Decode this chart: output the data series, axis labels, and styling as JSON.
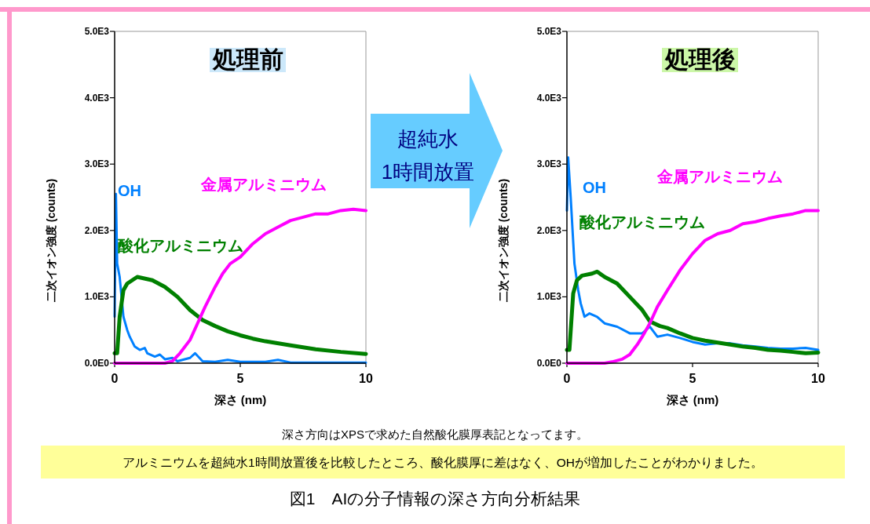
{
  "chart_data": [
    {
      "type": "line",
      "title": "処理前",
      "xlabel": "深さ (nm)",
      "ylabel": "二次イオン強度 (counts)",
      "xlim": [
        0,
        10
      ],
      "ylim": [
        0,
        5000
      ],
      "xticks": [
        0,
        5,
        10
      ],
      "yticks": [
        {
          "value": 0,
          "label": "0.0E0"
        },
        {
          "value": 1000,
          "label": "1.0E3"
        },
        {
          "value": 2000,
          "label": "2.0E3"
        },
        {
          "value": 3000,
          "label": "3.0E3"
        },
        {
          "value": 4000,
          "label": "4.0E3"
        },
        {
          "value": 5000,
          "label": "5.0E3"
        }
      ],
      "grid": false,
      "legend": false,
      "line_style": "solid",
      "marker": "none",
      "series": [
        {
          "name": "OH",
          "color": "#0080ff",
          "x": [
            0,
            0.05,
            0.1,
            0.2,
            0.35,
            0.5,
            0.6,
            0.8,
            1.0,
            1.2,
            1.3,
            1.6,
            1.8,
            2.0,
            2.3,
            2.5,
            2.7,
            3.0,
            3.2,
            3.5,
            4.0,
            4.5,
            5.0,
            5.5,
            6.0,
            6.5,
            7.0,
            8.0,
            9.0,
            10.0
          ],
          "values": [
            700,
            2550,
            1500,
            1300,
            700,
            500,
            400,
            250,
            200,
            230,
            150,
            100,
            130,
            60,
            80,
            30,
            50,
            80,
            150,
            30,
            20,
            50,
            20,
            20,
            20,
            50,
            10,
            10,
            10,
            10
          ]
        },
        {
          "name": "酸化アルミニウム",
          "color": "#008000",
          "x": [
            0,
            0.1,
            0.2,
            0.35,
            0.5,
            0.9,
            1.5,
            2.0,
            2.5,
            3.0,
            3.5,
            4.0,
            4.5,
            5.0,
            5.5,
            6.0,
            7.0,
            8.0,
            9.0,
            10.0
          ],
          "values": [
            150,
            150,
            700,
            1100,
            1200,
            1300,
            1250,
            1150,
            1000,
            800,
            650,
            560,
            480,
            420,
            370,
            330,
            270,
            210,
            170,
            140
          ]
        },
        {
          "name": "金属アルミニウム",
          "color": "#ff00ff",
          "x": [
            0,
            2.0,
            2.3,
            2.6,
            3.0,
            3.3,
            3.6,
            4.0,
            4.3,
            4.6,
            5.0,
            5.5,
            6.0,
            6.5,
            7.0,
            7.5,
            8.0,
            8.5,
            9.0,
            9.5,
            10.0
          ],
          "values": [
            0,
            0,
            30,
            150,
            350,
            600,
            850,
            1150,
            1350,
            1500,
            1600,
            1800,
            1950,
            2050,
            2150,
            2200,
            2250,
            2250,
            2300,
            2320,
            2300
          ]
        }
      ]
    },
    {
      "type": "line",
      "title": "処理後",
      "xlabel": "深さ (nm)",
      "ylabel": "二次イオン強度 (counts)",
      "xlim": [
        0,
        10
      ],
      "ylim": [
        0,
        5000
      ],
      "xticks": [
        0,
        5,
        10
      ],
      "yticks": [
        {
          "value": 0,
          "label": "0.0E0"
        },
        {
          "value": 1000,
          "label": "1.0E3"
        },
        {
          "value": 2000,
          "label": "2.0E3"
        },
        {
          "value": 3000,
          "label": "3.0E3"
        },
        {
          "value": 4000,
          "label": "4.0E3"
        },
        {
          "value": 5000,
          "label": "5.0E3"
        }
      ],
      "grid": false,
      "legend": false,
      "line_style": "solid",
      "marker": "none",
      "series": [
        {
          "name": "OH",
          "color": "#0080ff",
          "x": [
            0,
            0.05,
            0.15,
            0.3,
            0.45,
            0.55,
            0.7,
            0.9,
            1.2,
            1.5,
            2.0,
            2.5,
            3.0,
            3.3,
            3.6,
            4.0,
            4.5,
            5.0,
            5.5,
            6.0,
            6.5,
            7.0,
            7.5,
            8.0,
            8.5,
            9.0,
            9.5,
            10.0
          ],
          "values": [
            2300,
            3100,
            2500,
            1500,
            1100,
            900,
            700,
            750,
            700,
            600,
            550,
            450,
            450,
            550,
            400,
            430,
            380,
            320,
            280,
            300,
            300,
            270,
            250,
            230,
            220,
            220,
            230,
            200
          ]
        },
        {
          "name": "酸化アルミニウム",
          "color": "#008000",
          "x": [
            0,
            0.1,
            0.25,
            0.4,
            0.6,
            1.0,
            1.2,
            1.5,
            2.0,
            2.5,
            3.0,
            3.3,
            3.7,
            4.0,
            4.5,
            5.0,
            5.5,
            6.0,
            6.5,
            7.0,
            7.5,
            8.0,
            8.5,
            9.0,
            9.5,
            10.0
          ],
          "values": [
            200,
            200,
            1050,
            1250,
            1320,
            1350,
            1380,
            1300,
            1200,
            1000,
            800,
            630,
            560,
            530,
            450,
            380,
            340,
            310,
            280,
            250,
            230,
            200,
            190,
            170,
            150,
            160
          ]
        },
        {
          "name": "金属アルミニウム",
          "color": "#ff00ff",
          "x": [
            0,
            1.5,
            1.8,
            2.2,
            2.5,
            2.8,
            3.0,
            3.3,
            3.6,
            4.0,
            4.5,
            5.0,
            5.5,
            6.0,
            6.5,
            7.0,
            7.5,
            8.0,
            8.5,
            9.0,
            9.5,
            10.0
          ],
          "values": [
            0,
            0,
            20,
            60,
            130,
            280,
            400,
            600,
            850,
            1100,
            1400,
            1650,
            1850,
            1950,
            2000,
            2100,
            2130,
            2180,
            2220,
            2250,
            2300,
            2300
          ]
        }
      ]
    },
    {
      "type": "other",
      "title": "図1　AIの分子情報の深さ方向分析結果",
      "annotations": [
        "超純水",
        "1時間放置",
        "深さ方向はXPSで求めた自然酸化膜厚表記となってます。",
        "アルミニウムを超純水1時間放置後を比較したところ、酸化膜厚に差はなく、OHが増加したことがわかりました。"
      ]
    }
  ]
}
